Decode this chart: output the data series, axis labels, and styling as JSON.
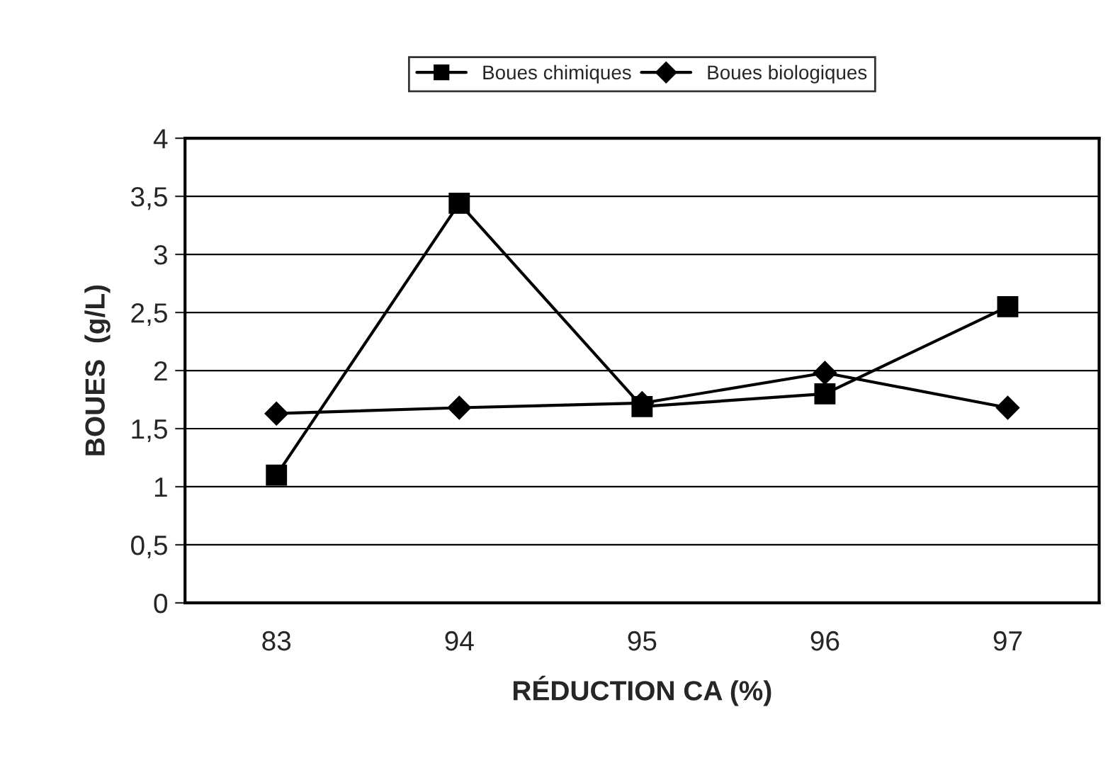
{
  "chart_data": {
    "type": "line",
    "xlabel": "RÉDUCTION CA (%)",
    "ylabel": "BOUES  (g/L)",
    "categories": [
      "83",
      "94",
      "95",
      "96",
      "97"
    ],
    "series": [
      {
        "name": "Boues chimiques",
        "color": "#000000",
        "marker": "square",
        "values": [
          1.1,
          3.44,
          1.69,
          1.8,
          2.55
        ]
      },
      {
        "name": "Boues biologiques",
        "color": "#000000",
        "marker": "diamond",
        "values": [
          1.63,
          1.68,
          1.72,
          1.98,
          1.68
        ]
      }
    ],
    "ylim": [
      0,
      4
    ],
    "yticks": [
      0,
      {
        "value": 0.5,
        "label": "0,5"
      },
      1,
      {
        "value": 1.5,
        "label": "1,5"
      },
      2,
      {
        "value": 2.5,
        "label": "2,5"
      },
      3,
      {
        "value": 3.5,
        "label": "3,5"
      },
      4
    ],
    "grid": "y",
    "legend": "top",
    "line_style": "solid"
  }
}
